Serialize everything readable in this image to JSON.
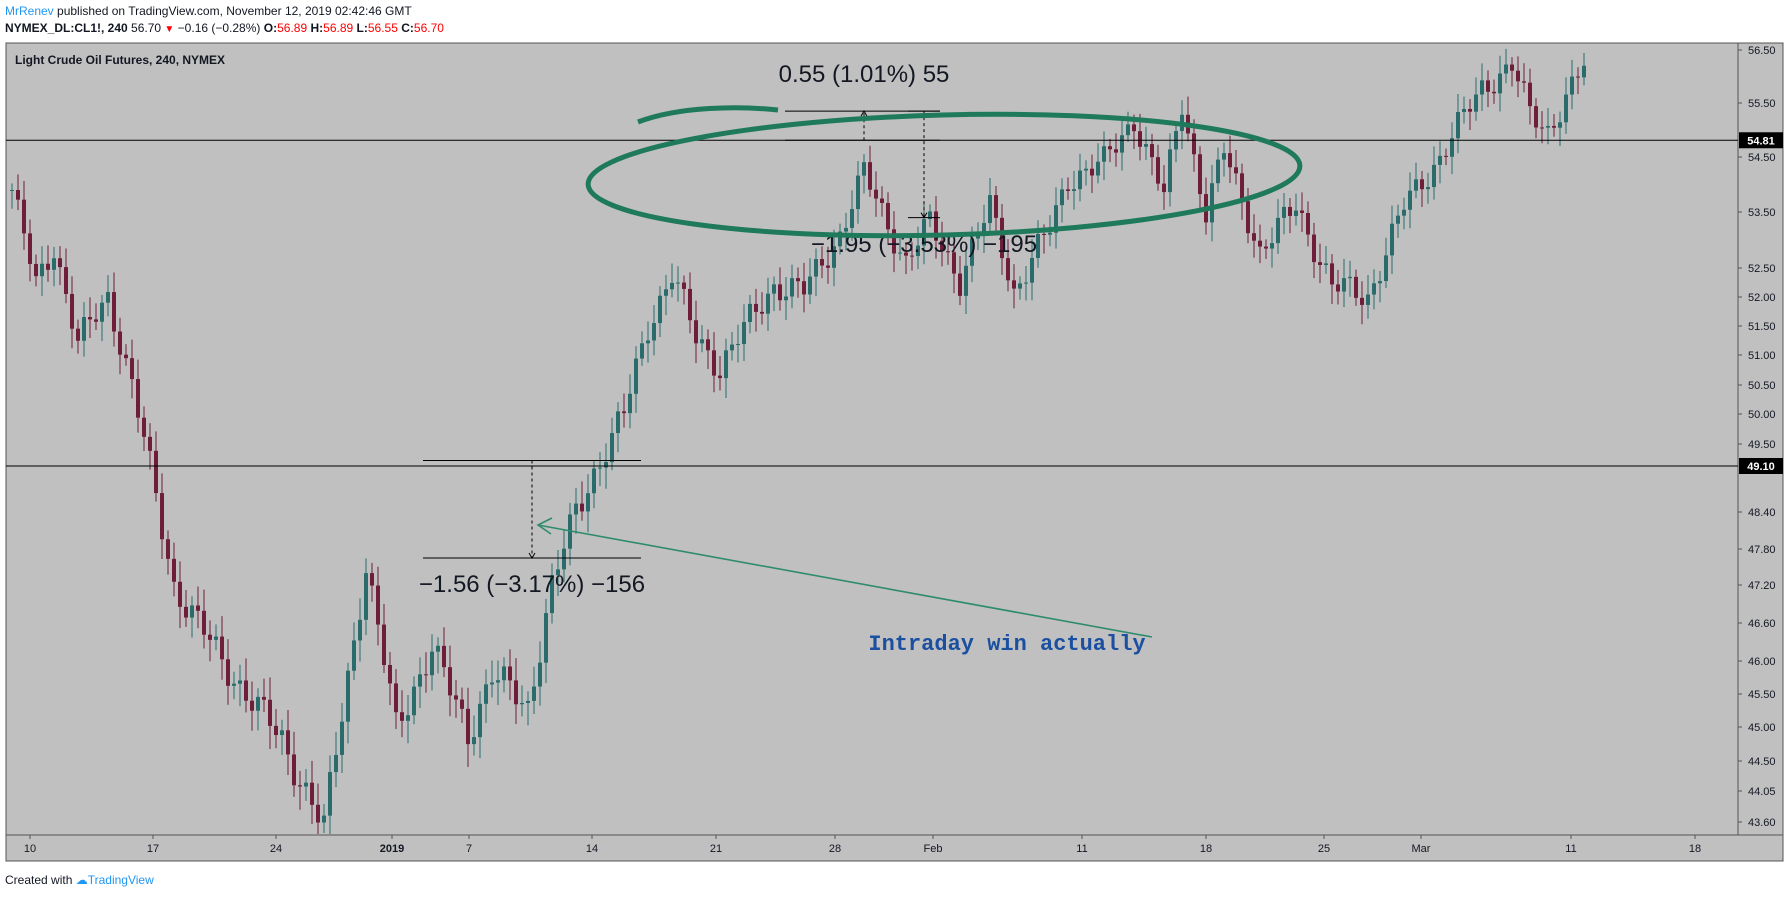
{
  "header": {
    "author": "MrRenev",
    "published": "published on TradingView.com, November 12, 2019 02:42:46 GMT",
    "symbol": "NYMEX_DL:CL1!, 240",
    "last": "56.70",
    "change": "−0.16 (−0.28%)",
    "o_label": "O:",
    "o_value": "56.89",
    "h_label": "H:",
    "h_value": "56.89",
    "l_label": "L:",
    "l_value": "56.55",
    "c_label": "C:",
    "c_value": "56.70"
  },
  "footer": {
    "created_with": "Created with",
    "brand": "TradingView"
  },
  "colors": {
    "background": "#c0c0c0",
    "candle_up": "#2a6b6b",
    "candle_down": "#6e1e38",
    "ellipse": "#1e7a5a",
    "arrow": "#2e8b6e",
    "annotation_text": "#1b4fa0"
  },
  "chart_data": {
    "type": "candlestick",
    "title": "Light Crude Oil Futures, 240, NYMEX",
    "ylim": [
      43.3,
      56.7
    ],
    "y_ticks": [
      "56.50",
      "55.50",
      "54.50",
      "53.50",
      "52.50",
      "52.00",
      "51.50",
      "51.00",
      "50.50",
      "50.00",
      "49.50",
      "48.40",
      "47.80",
      "47.20",
      "46.60",
      "46.00",
      "45.50",
      "45.00",
      "44.50",
      "44.05",
      "43.60"
    ],
    "x_tick_labels": [
      "10",
      "17",
      "24",
      "2019",
      "7",
      "14",
      "21",
      "28",
      "Feb",
      "11",
      "18",
      "25",
      "Mar",
      "11",
      "18"
    ],
    "price_lines": [
      {
        "value": 54.81,
        "label": "54.81"
      },
      {
        "value": 49.1,
        "label": "49.10"
      }
    ],
    "series": [
      {
        "x": [
          0,
          4,
          7,
          11,
          16,
          20,
          27,
          35,
          45,
          52,
          59,
          64,
          70,
          76,
          80,
          86,
          90,
          94,
          97,
          102,
          106,
          110,
          114,
          118,
          123,
          127,
          132,
          138,
          142,
          149,
          153,
          158,
          163,
          167,
          173,
          176,
          182,
          187,
          192,
          195,
          199,
          202,
          208,
          214,
          220,
          226,
          232,
          238,
          245,
          250,
          253,
          256,
          262
        ],
        "close": [
          53.9,
          52.2,
          52.9,
          51.2,
          52.0,
          50.5,
          47.2,
          46.0,
          44.8,
          43.5,
          47.5,
          45.0,
          46.2,
          44.9,
          45.8,
          45.3,
          47.2,
          48.4,
          49.0,
          50.0,
          51.5,
          52.4,
          51.3,
          50.8,
          51.6,
          52.2,
          52.1,
          53.1,
          54.2,
          52.6,
          53.3,
          52.3,
          53.6,
          52.1,
          53.2,
          54.1,
          54.4,
          55.2,
          53.8,
          55.5,
          53.5,
          54.6,
          52.8,
          53.6,
          52.2,
          52.0,
          53.6,
          54.5,
          55.8,
          56.2,
          55.3,
          55.0,
          56.2
        ]
      }
    ],
    "measurements": [
      {
        "label": "0.55 (1.01%) 55",
        "from": 54.81,
        "to": 55.35
      },
      {
        "label": "−1.95 (−3.53%) −195",
        "from": 55.35,
        "to": 53.4
      },
      {
        "label": "−1.56 (−3.17%) −156",
        "from": 49.2,
        "to": 47.65
      }
    ],
    "annotations": [
      {
        "text": "Intraday win actually"
      }
    ]
  }
}
